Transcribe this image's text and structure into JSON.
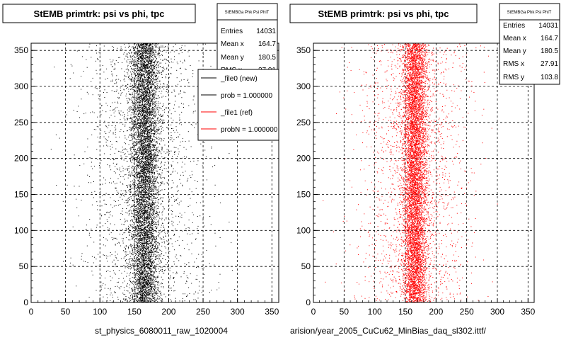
{
  "chart_data": [
    {
      "type": "scatter",
      "title": "StEMB primtrk: psi vs phi, tpc",
      "xlabel": "st_physics_6080011_raw_1020004",
      "ylabel": "",
      "xlim": [
        0,
        360
      ],
      "ylim": [
        0,
        360
      ],
      "x_ticks": [
        0,
        50,
        100,
        150,
        200,
        250,
        300,
        350
      ],
      "y_ticks": [
        0,
        50,
        100,
        150,
        200,
        250,
        300,
        350
      ],
      "grid": true,
      "marker_color": "#000000",
      "stats": {
        "name": "StEMBGa Phk Psi PhiT",
        "rows": [
          {
            "label": "Entries",
            "value": "14031"
          },
          {
            "label": "Mean x",
            "value": "164.7"
          },
          {
            "label": "Mean y",
            "value": "180.5"
          },
          {
            "label": "RMS x",
            "value": "27.91"
          }
        ]
      },
      "legend": {
        "placement": "top-right",
        "entries": [
          {
            "label": "_file0 (new)",
            "color": "#000000"
          },
          {
            "label": "prob = 1.000000",
            "color": "#000000"
          },
          {
            "label": "_file1 (ref)",
            "color": "#ff0000"
          },
          {
            "label": "probN = 1.000000",
            "color": "#ff0000"
          }
        ]
      },
      "distribution": {
        "x_center": 165,
        "x_spread": 10,
        "tail_share": 0.22,
        "count": 9000
      }
    },
    {
      "type": "scatter",
      "title": "StEMB primtrk: psi vs phi, tpc",
      "xlabel": "arision/year_2005_CuCu62_MinBias_daq_sl302.ittf/",
      "ylabel": "",
      "xlim": [
        0,
        360
      ],
      "ylim": [
        0,
        360
      ],
      "x_ticks": [
        0,
        50,
        100,
        150,
        200,
        250,
        300,
        350
      ],
      "y_ticks": [
        0,
        50,
        100,
        150,
        200,
        250,
        300,
        350
      ],
      "grid": true,
      "marker_color": "#ff0000",
      "stats": {
        "name": "StEMBGa Phk Psi PhiT",
        "rows": [
          {
            "label": "Entries",
            "value": "14031"
          },
          {
            "label": "Mean x",
            "value": "164.7"
          },
          {
            "label": "Mean y",
            "value": "180.5"
          },
          {
            "label": "RMS x",
            "value": "27.91"
          },
          {
            "label": "RMS y",
            "value": "103.8"
          }
        ]
      },
      "distribution": {
        "x_center": 165,
        "x_spread": 10,
        "tail_share": 0.22,
        "count": 9000
      }
    }
  ]
}
